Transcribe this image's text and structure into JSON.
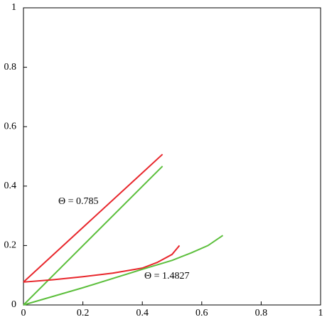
{
  "chart_data": {
    "type": "line",
    "xlim": [
      0,
      1
    ],
    "ylim": [
      0,
      1
    ],
    "xticks": [
      0,
      0.2,
      0.4,
      0.6,
      0.8,
      1
    ],
    "yticks": [
      0,
      0.2,
      0.4,
      0.6,
      0.8,
      1
    ],
    "series": [
      {
        "color": "#e8262b",
        "x": [
          0,
          0.468
        ],
        "values": [
          0.077,
          0.507
        ]
      },
      {
        "color": "#5cbf3c",
        "x": [
          0,
          0.468
        ],
        "values": [
          0,
          0.467
        ]
      },
      {
        "color": "#e8262b",
        "x": [
          0,
          0.1,
          0.2,
          0.3,
          0.4,
          0.45,
          0.5,
          0.525
        ],
        "values": [
          0.077,
          0.085,
          0.095,
          0.107,
          0.124,
          0.143,
          0.17,
          0.2
        ]
      },
      {
        "color": "#5cbf3c",
        "x": [
          0,
          0.2,
          0.4,
          0.5,
          0.564,
          0.621,
          0.671
        ],
        "values": [
          0,
          0.058,
          0.12,
          0.15,
          0.175,
          0.2,
          0.234
        ]
      }
    ],
    "annotations": [
      "Θ = 0.785",
      "Θ = 1.4827"
    ]
  }
}
